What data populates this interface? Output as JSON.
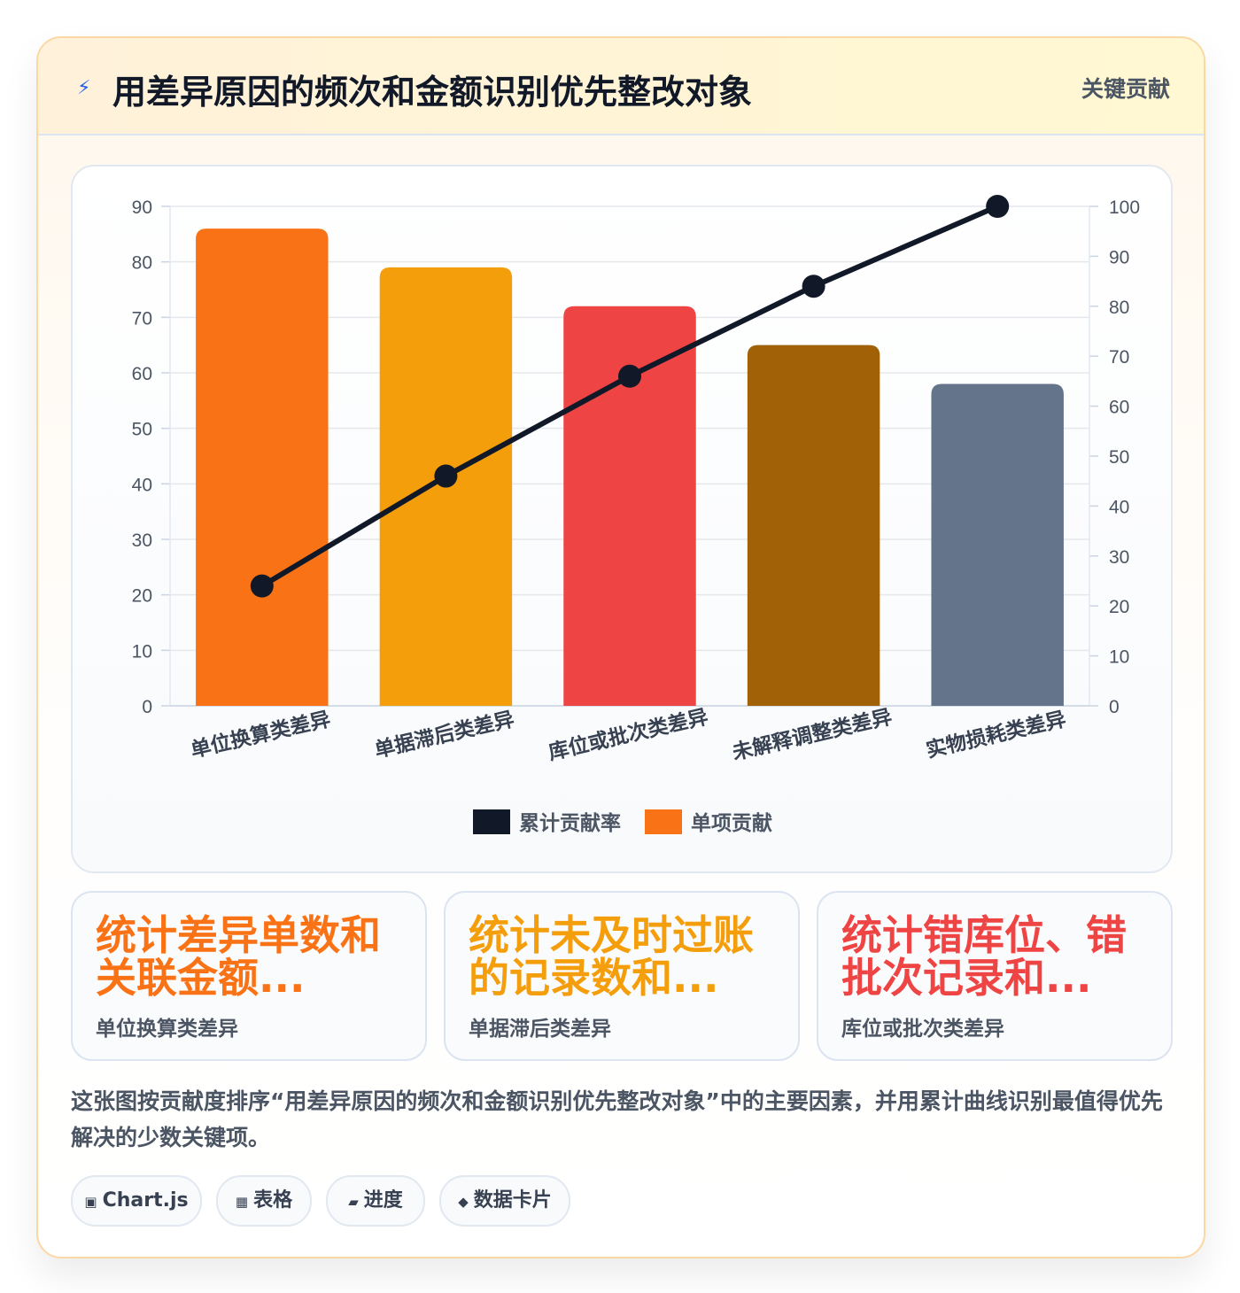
{
  "header": {
    "icon": "lightning-icon",
    "title": "用差异原因的频次和金额识别优先整改对象",
    "badge": "关键贡献"
  },
  "chart_data": {
    "type": "bar",
    "categories": [
      "单位换算类差异",
      "单据滞后类差异",
      "库位或批次类差异",
      "未解释调整类差异",
      "实物损耗类差异"
    ],
    "series": [
      {
        "name": "单项贡献",
        "type": "bar",
        "axis": "left",
        "values": [
          86,
          79,
          72,
          65,
          58
        ],
        "colors": [
          "#f97316",
          "#f59e0b",
          "#ef4444",
          "#a16207",
          "#64748b"
        ]
      },
      {
        "name": "累计贡献率",
        "type": "line",
        "axis": "right",
        "values": [
          24,
          46,
          66,
          84,
          100
        ],
        "color": "#111827"
      }
    ],
    "ylim": [
      0,
      90
    ],
    "y2lim": [
      0,
      100
    ],
    "yticks": [
      "0",
      "10",
      "20",
      "30",
      "40",
      "50",
      "60",
      "70",
      "80",
      "90"
    ],
    "y2ticks": [
      "0",
      "10",
      "20",
      "30",
      "40",
      "50",
      "60",
      "70",
      "80",
      "90",
      "100"
    ],
    "legend": [
      {
        "label": "累计贡献率",
        "color": "#111827"
      },
      {
        "label": "单项贡献",
        "color": "#f97316"
      }
    ],
    "legend_position": "bottom",
    "grid": true
  },
  "kpis": [
    {
      "value": "统计差异单数和关联金额...",
      "label": "单位换算类差异",
      "color": "#f97316"
    },
    {
      "value": "统计未及时过账的记录数和...",
      "label": "单据滞后类差异",
      "color": "#f59e0b"
    },
    {
      "value": "统计错库位、错批次记录和...",
      "label": "库位或批次类差异",
      "color": "#ef4444"
    }
  ],
  "description": "这张图按贡献度排序“用差异原因的频次和金额识别优先整改对象”中的主要因素，并用累计曲线识别最值得优先解决的少数关键项。",
  "tags": [
    {
      "icon": "chart-icon",
      "glyph": "▣",
      "label": "Chart.js"
    },
    {
      "icon": "table-icon",
      "glyph": "▦",
      "label": "表格"
    },
    {
      "icon": "progress-icon",
      "glyph": "▰",
      "label": "进度"
    },
    {
      "icon": "data-card-icon",
      "glyph": "◆",
      "label": "数据卡片"
    }
  ]
}
